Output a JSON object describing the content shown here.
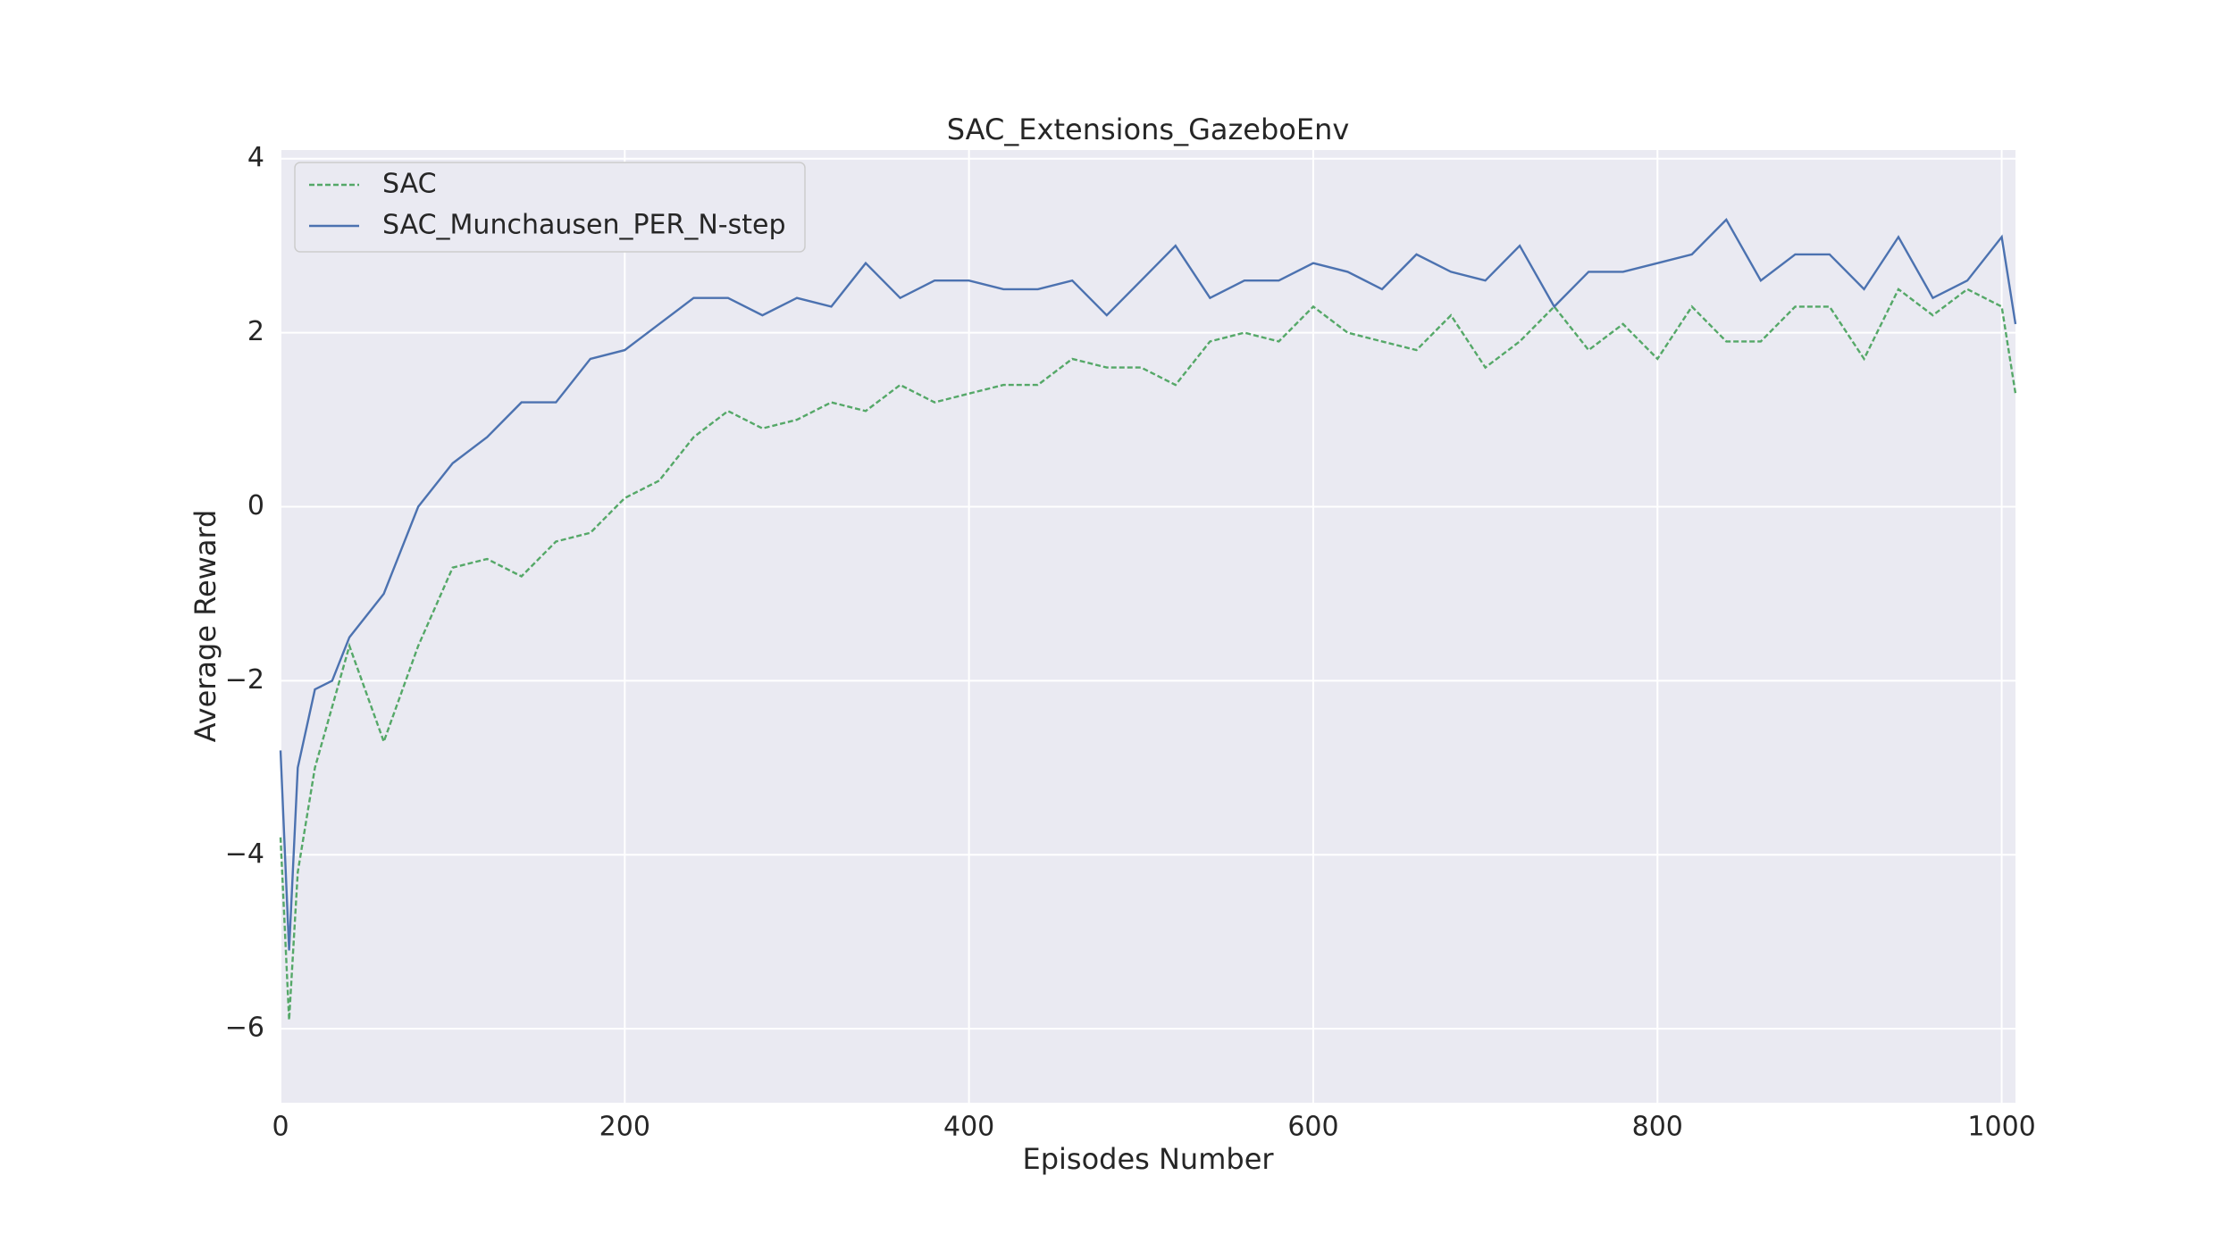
{
  "chart_data": {
    "type": "line",
    "title": "SAC_Extensions_GazeboEnv",
    "x_label": "Episodes Number",
    "y_label": "Average Reward",
    "x": [
      0,
      5,
      10,
      20,
      30,
      40,
      60,
      80,
      100,
      120,
      140,
      160,
      180,
      200,
      220,
      240,
      260,
      280,
      300,
      320,
      340,
      360,
      380,
      400,
      420,
      440,
      460,
      480,
      500,
      520,
      540,
      560,
      580,
      600,
      620,
      640,
      660,
      680,
      700,
      720,
      740,
      760,
      780,
      800,
      820,
      840,
      860,
      880,
      900,
      920,
      940,
      960,
      980,
      1000,
      1008
    ],
    "series": [
      {
        "name": "SAC",
        "color": "#55a868",
        "dash": true,
        "values": [
          -3.8,
          -5.9,
          -4.2,
          -3.0,
          -2.3,
          -1.6,
          -2.7,
          -1.6,
          -0.7,
          -0.6,
          -0.8,
          -0.4,
          -0.3,
          0.1,
          0.3,
          0.8,
          1.1,
          0.9,
          1.0,
          1.2,
          1.1,
          1.4,
          1.2,
          1.3,
          1.4,
          1.4,
          1.7,
          1.6,
          1.6,
          1.4,
          1.9,
          2.0,
          1.9,
          2.3,
          2.0,
          1.9,
          1.8,
          2.2,
          1.6,
          1.9,
          2.3,
          1.8,
          2.1,
          1.7,
          2.3,
          1.9,
          1.9,
          2.3,
          2.3,
          1.7,
          2.5,
          2.2,
          2.5,
          2.3,
          1.3
        ]
      },
      {
        "name": "SAC_Munchausen_PER_N-step",
        "color": "#4c72b0",
        "dash": false,
        "values": [
          -2.8,
          -5.1,
          -3.0,
          -2.1,
          -2.0,
          -1.5,
          -1.0,
          0.0,
          0.5,
          0.8,
          1.2,
          1.2,
          1.7,
          1.8,
          2.1,
          2.4,
          2.4,
          2.2,
          2.4,
          2.3,
          2.8,
          2.4,
          2.6,
          2.6,
          2.5,
          2.5,
          2.6,
          2.2,
          2.6,
          3.0,
          2.4,
          2.6,
          2.6,
          2.8,
          2.7,
          2.5,
          2.9,
          2.7,
          2.6,
          3.0,
          2.3,
          2.7,
          2.7,
          2.8,
          2.9,
          3.3,
          2.6,
          2.9,
          2.9,
          2.5,
          3.1,
          2.4,
          2.6,
          3.1,
          2.1
        ]
      }
    ],
    "xlim": [
      0,
      1008
    ],
    "ylim": [
      -6.85,
      4.1
    ],
    "xticks": [
      0,
      200,
      400,
      600,
      800,
      1000
    ],
    "yticks": [
      {
        "value": -6,
        "label": "−6"
      },
      {
        "value": -4,
        "label": "−4"
      },
      {
        "value": -2,
        "label": "−2"
      },
      0,
      2,
      4
    ],
    "grid": true,
    "legend": "upper left"
  }
}
